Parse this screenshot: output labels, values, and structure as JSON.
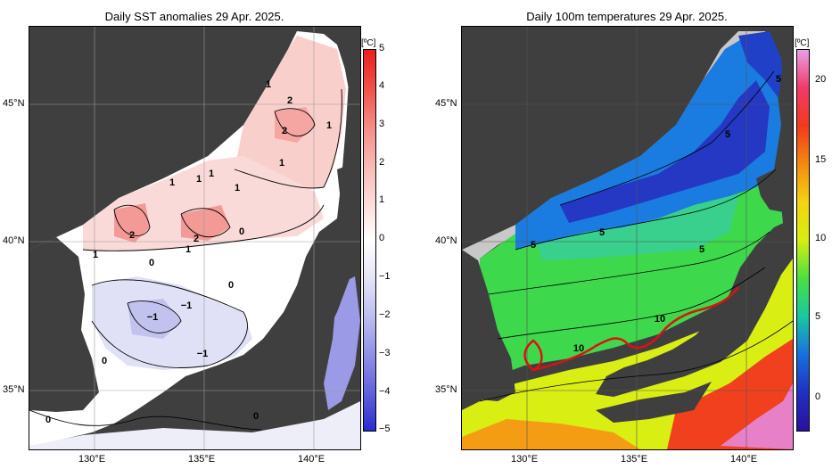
{
  "left_panel": {
    "title": "Daily SST anomalies 29 Apr. 2025.",
    "colorbar": {
      "unit": "[ºC]",
      "ticks": [
        "5",
        "4",
        "3",
        "2",
        "1",
        "0",
        "−1",
        "−2",
        "−3",
        "−4",
        "−5"
      ],
      "stops": [
        "#e8201c",
        "#f0504a",
        "#f58a86",
        "#f7b8b4",
        "#fbdcda",
        "#ffffff",
        "#e4e4f6",
        "#bdbdf0",
        "#9090e6",
        "#6262dc",
        "#2a2ad0"
      ]
    },
    "contour_labels": [
      "1",
      "2",
      "2",
      "1",
      "1",
      "1",
      "1",
      "1",
      "1",
      "2",
      "2",
      "0",
      "1",
      "1",
      "0",
      "0",
      "−1",
      "−1",
      "−1",
      "0",
      "0"
    ]
  },
  "right_panel": {
    "title": "Daily 100m temperatures 29 Apr. 2025.",
    "colorbar": {
      "unit": "[ºC]",
      "ticks": [
        "20",
        "15",
        "10",
        "5",
        "0"
      ],
      "stops": [
        "#e7a0e8",
        "#f03a6a",
        "#f23a1e",
        "#f48a10",
        "#f4d410",
        "#d6ee10",
        "#4ae040",
        "#18c8a0",
        "#1870e0",
        "#2030c0",
        "#2a10a0"
      ]
    },
    "contour_labels": [
      "5",
      "5",
      "5",
      "5",
      "5",
      "10",
      "10"
    ]
  },
  "axes": {
    "lat_labels": [
      "45°N",
      "40°N",
      "35°N"
    ],
    "lon_labels": [
      "130°E",
      "135°E",
      "140°E"
    ]
  },
  "colors": {
    "land": "#3f3f3f",
    "unmeasured": "#c8c8c8",
    "kuroshio_axis": "#e01010"
  }
}
